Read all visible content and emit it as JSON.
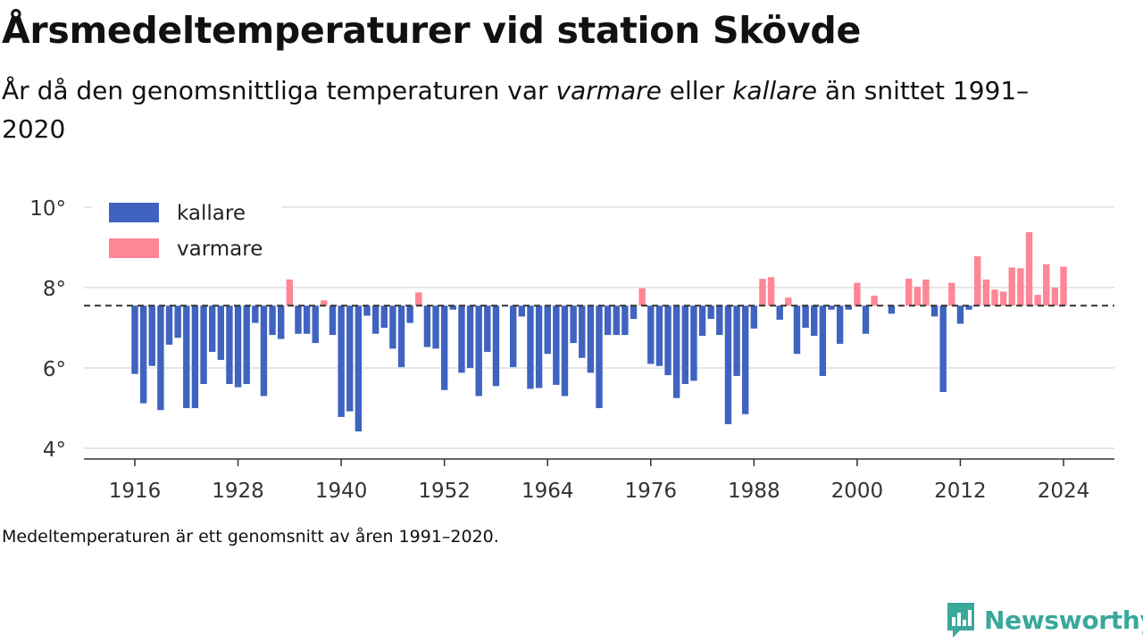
{
  "title": "Årsmedeltemperaturer vid station Skövde",
  "subtitle": {
    "part1": "År då den genomsnittliga temperaturen var ",
    "warm_word": "varmare",
    "part2": " eller ",
    "cold_word": "kallare",
    "part3": " än snittet 1991–2020"
  },
  "footnote": "Medeltemperaturen är ett genomsnitt av åren 1991–2020.",
  "brand": "Newsworthy",
  "colors": {
    "cold": "#3f63bf",
    "warm": "#ff8696",
    "baseline": "#333333",
    "grid": "#dddddd"
  },
  "chart_data": {
    "type": "bar",
    "baseline": 7.55,
    "ylim": [
      3.7,
      10.2
    ],
    "yticks": [
      4,
      6,
      8,
      10
    ],
    "ytick_suffix": "°",
    "xticks": [
      1916,
      1928,
      1940,
      1952,
      1964,
      1976,
      1988,
      2000,
      2012,
      2024
    ],
    "legend": {
      "position": "top-left",
      "entries": [
        {
          "key": "cold",
          "label": "kallare"
        },
        {
          "key": "warm",
          "label": "varmare"
        }
      ]
    },
    "years": [
      1916,
      1917,
      1918,
      1919,
      1920,
      1921,
      1922,
      1923,
      1924,
      1925,
      1926,
      1927,
      1928,
      1929,
      1930,
      1931,
      1932,
      1933,
      1934,
      1935,
      1936,
      1937,
      1938,
      1939,
      1940,
      1941,
      1942,
      1943,
      1944,
      1945,
      1946,
      1947,
      1948,
      1949,
      1950,
      1951,
      1952,
      1953,
      1954,
      1955,
      1956,
      1957,
      1958,
      1959,
      1960,
      1961,
      1962,
      1963,
      1964,
      1965,
      1966,
      1967,
      1968,
      1969,
      1970,
      1971,
      1972,
      1973,
      1974,
      1975,
      1976,
      1977,
      1978,
      1979,
      1980,
      1981,
      1982,
      1983,
      1984,
      1985,
      1986,
      1987,
      1988,
      1989,
      1990,
      1991,
      1992,
      1993,
      1994,
      1995,
      1996,
      1997,
      1998,
      1999,
      2000,
      2001,
      2002,
      2003,
      2004,
      2005,
      2006,
      2007,
      2008,
      2009,
      2010,
      2011,
      2012,
      2013,
      2014,
      2015,
      2016,
      2017,
      2018,
      2019,
      2020,
      2021,
      2022,
      2023,
      2024
    ],
    "values": [
      5.85,
      5.12,
      6.05,
      4.95,
      6.58,
      6.75,
      5.0,
      5.0,
      5.6,
      6.4,
      6.2,
      5.6,
      5.52,
      5.6,
      7.12,
      5.3,
      6.82,
      6.72,
      8.2,
      6.85,
      6.85,
      6.62,
      7.68,
      6.82,
      4.78,
      4.92,
      4.42,
      7.3,
      6.85,
      7.0,
      6.48,
      6.02,
      7.12,
      7.88,
      6.52,
      6.48,
      5.45,
      7.45,
      5.88,
      6.0,
      5.3,
      6.4,
      5.55,
      7.55,
      6.02,
      7.28,
      5.48,
      5.5,
      6.35,
      5.58,
      5.3,
      6.62,
      6.25,
      5.88,
      5.0,
      6.82,
      6.82,
      6.82,
      7.22,
      7.98,
      6.1,
      6.05,
      5.82,
      5.25,
      5.6,
      5.68,
      6.8,
      7.22,
      6.82,
      4.6,
      5.8,
      4.85,
      6.98,
      8.22,
      8.26,
      7.2,
      7.75,
      6.35,
      7.0,
      6.8,
      5.8,
      7.45,
      6.6,
      7.45,
      8.12,
      6.85,
      7.8,
      7.55,
      7.35,
      7.55,
      8.22,
      8.02,
      8.2,
      7.28,
      5.4,
      8.12,
      7.1,
      7.45,
      8.78,
      8.2,
      7.95,
      7.9,
      8.5,
      8.48,
      9.38,
      7.82,
      8.58,
      8.0,
      8.52
    ]
  }
}
